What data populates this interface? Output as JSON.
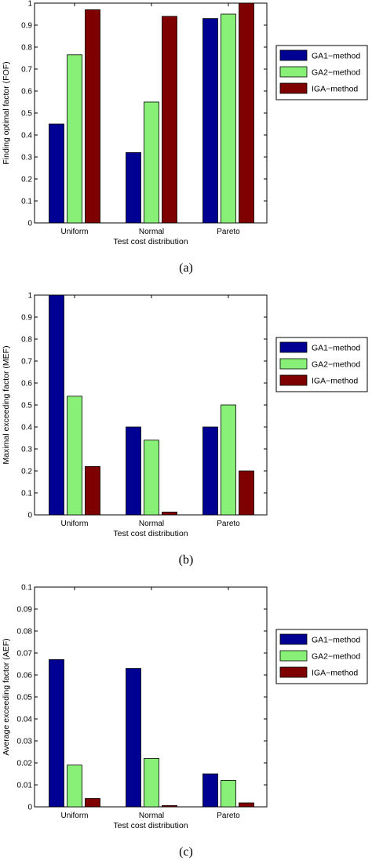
{
  "colors": {
    "ga1": "#000093",
    "ga2": "#89f077",
    "iga": "#7f0000",
    "axes": "#000000",
    "background": "#ffffff"
  },
  "chart_data": [
    {
      "type": "bar",
      "panel_label": "(a)",
      "categories": [
        "Uniform",
        "Normal",
        "Pareto"
      ],
      "xlabel": "Test cost distribution",
      "ylabel": "Finding optimal factor (FOF)",
      "ylim": [
        0,
        1
      ],
      "yticks": [
        "0",
        "0.1",
        "0.2",
        "0.3",
        "0.4",
        "0.5",
        "0.6",
        "0.7",
        "0.8",
        "0.9",
        "1"
      ],
      "ytick_values": [
        0,
        0.1,
        0.2,
        0.3,
        0.4,
        0.5,
        0.6,
        0.7,
        0.8,
        0.9,
        1
      ],
      "grid": false,
      "legend_position": "right",
      "series": [
        {
          "name": "GA1−method",
          "values": [
            0.45,
            0.32,
            0.93
          ]
        },
        {
          "name": "GA2−method",
          "values": [
            0.765,
            0.55,
            0.95
          ]
        },
        {
          "name": "IGA−method",
          "values": [
            0.97,
            0.94,
            1.0
          ]
        }
      ]
    },
    {
      "type": "bar",
      "panel_label": "(b)",
      "categories": [
        "Uniform",
        "Normal",
        "Pareto"
      ],
      "xlabel": "Test cost distribution",
      "ylabel": "Maximal exceeding factor (MEF)",
      "ylim": [
        0,
        1
      ],
      "yticks": [
        "0",
        "0.1",
        "0.2",
        "0.3",
        "0.4",
        "0.5",
        "0.6",
        "0.7",
        "0.8",
        "0.9",
        "1"
      ],
      "ytick_values": [
        0,
        0.1,
        0.2,
        0.3,
        0.4,
        0.5,
        0.6,
        0.7,
        0.8,
        0.9,
        1
      ],
      "grid": false,
      "legend_position": "right",
      "series": [
        {
          "name": "GA1−method",
          "values": [
            1.0,
            0.4,
            0.4
          ]
        },
        {
          "name": "GA2−method",
          "values": [
            0.54,
            0.34,
            0.5
          ]
        },
        {
          "name": "IGA−method",
          "values": [
            0.22,
            0.013,
            0.2
          ]
        }
      ]
    },
    {
      "type": "bar",
      "panel_label": "(c)",
      "categories": [
        "Uniform",
        "Normal",
        "Pareto"
      ],
      "xlabel": "Test cost distribution",
      "ylabel": "Average exceeding factor (AEF)",
      "ylim": [
        0,
        0.1
      ],
      "yticks": [
        "0",
        "0.01",
        "0.02",
        "0.03",
        "0.04",
        "0.05",
        "0.06",
        "0.07",
        "0.08",
        "0.09",
        "0.1"
      ],
      "ytick_values": [
        0,
        0.01,
        0.02,
        0.03,
        0.04,
        0.05,
        0.06,
        0.07,
        0.08,
        0.09,
        0.1
      ],
      "grid": false,
      "legend_position": "right",
      "series": [
        {
          "name": "GA1−method",
          "values": [
            0.067,
            0.063,
            0.015
          ]
        },
        {
          "name": "GA2−method",
          "values": [
            0.019,
            0.022,
            0.012
          ]
        },
        {
          "name": "IGA−method",
          "values": [
            0.0038,
            0.0006,
            0.0018
          ]
        }
      ]
    }
  ]
}
